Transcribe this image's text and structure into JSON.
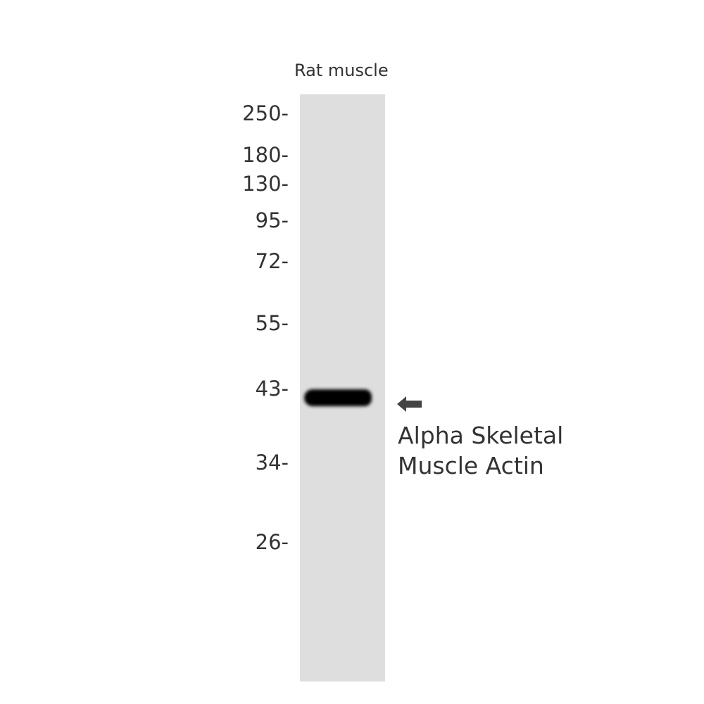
{
  "lane_labels": [
    "Rat muscle"
  ],
  "mw_markers": [
    "250-",
    "180-",
    "130-",
    "95-",
    "72-",
    "55-",
    "43-",
    "34-",
    "26-"
  ],
  "target": {
    "line1": "Alpha Skeletal",
    "line2": "Muscle Actin"
  },
  "colors": {
    "band": "#000000",
    "lane": "#dedede",
    "arrow": "#444444"
  }
}
